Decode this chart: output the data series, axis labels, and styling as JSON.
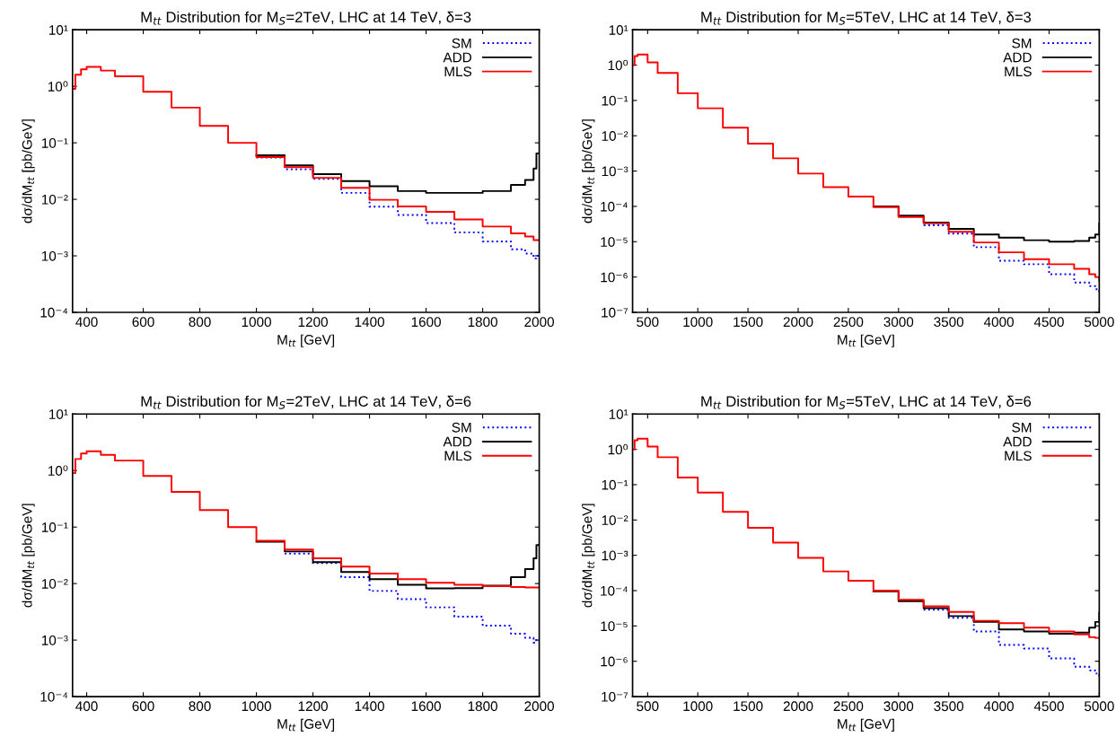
{
  "chart_data": [
    {
      "type": "step",
      "title": "M$_{tt}$ Distribution for M$_{S}$=2TeV, LHC at 14 TeV, δ=3",
      "xlabel": "M$_{tt}$ [GeV]",
      "ylabel": "dσ/dM$_{tt}$ [pb/GeV]",
      "log": "y",
      "legend": "top right",
      "grid": false,
      "xlim": [
        350,
        2000
      ],
      "xticks": [
        400,
        600,
        800,
        1000,
        1200,
        1400,
        1600,
        1800,
        2000
      ],
      "ylim": [
        0.0001,
        10
      ],
      "yticks": [
        {
          "value": 0.0001,
          "label": "10⁻⁴"
        },
        {
          "value": 0.001,
          "label": "10⁻³"
        },
        {
          "value": 0.01,
          "label": "10⁻²"
        },
        {
          "value": 0.1,
          "label": "10⁻¹"
        },
        {
          "value": 1,
          "label": "10⁰"
        },
        {
          "value": 10,
          "label": "10¹"
        }
      ],
      "x": [
        350,
        360,
        380,
        400,
        450,
        500,
        600,
        700,
        800,
        900,
        1000,
        1100,
        1200,
        1300,
        1400,
        1500,
        1600,
        1700,
        1800,
        1900,
        1950,
        1980,
        1990,
        2000
      ],
      "series": [
        {
          "name": "SM",
          "color": "#0000ff",
          "line_style": "dotted",
          "values": [
            null,
            null,
            null,
            null,
            null,
            null,
            null,
            null,
            null,
            null,
            0.055,
            0.034,
            0.023,
            0.013,
            0.0074,
            0.0053,
            0.0038,
            0.0026,
            0.0018,
            0.0013,
            0.0011,
            0.0009,
            0.001,
            0.001
          ]
        },
        {
          "name": "ADD",
          "color": "#000000",
          "line_style": "solid",
          "values": [
            null,
            null,
            null,
            null,
            null,
            null,
            null,
            null,
            null,
            null,
            0.06,
            0.04,
            0.028,
            0.021,
            0.017,
            0.014,
            0.013,
            0.013,
            0.014,
            0.018,
            0.022,
            0.035,
            0.065,
            0.065
          ]
        },
        {
          "name": "MLS",
          "color": "#ff0000",
          "line_style": "solid",
          "values": [
            0.9,
            1.6,
            2.0,
            2.2,
            1.9,
            1.5,
            0.8,
            0.42,
            0.2,
            0.1,
            0.056,
            0.037,
            0.024,
            0.016,
            0.0098,
            0.0075,
            0.006,
            0.0044,
            0.0033,
            0.0025,
            0.0022,
            0.0019,
            0.0019,
            0.0019
          ]
        }
      ]
    },
    {
      "type": "step",
      "title": "M$_{tt}$ Distribution for M$_{S}$=5TeV, LHC at 14 TeV, δ=3",
      "xlabel": "M$_{tt}$ [GeV]",
      "ylabel": "dσ/dM$_{tt}$ [pb/GeV]",
      "log": "y",
      "legend": "top right",
      "grid": false,
      "xlim": [
        350,
        5000
      ],
      "xticks": [
        500,
        1000,
        1500,
        2000,
        2500,
        3000,
        3500,
        4000,
        4500,
        5000
      ],
      "ylim": [
        1e-07,
        10
      ],
      "yticks": [
        {
          "value": 1e-07,
          "label": "10⁻⁷"
        },
        {
          "value": 1e-06,
          "label": "10⁻⁶"
        },
        {
          "value": 1e-05,
          "label": "10⁻⁵"
        },
        {
          "value": 0.0001,
          "label": "10⁻⁴"
        },
        {
          "value": 0.001,
          "label": "10⁻³"
        },
        {
          "value": 0.01,
          "label": "10⁻²"
        },
        {
          "value": 0.1,
          "label": "10⁻¹"
        },
        {
          "value": 1,
          "label": "10⁰"
        },
        {
          "value": 10,
          "label": "10¹"
        }
      ],
      "x": [
        350,
        370,
        400,
        500,
        600,
        800,
        1000,
        1250,
        1500,
        1750,
        2000,
        2250,
        2500,
        2750,
        3000,
        3250,
        3500,
        3750,
        4000,
        4250,
        4500,
        4750,
        4900,
        4960,
        5000
      ],
      "series": [
        {
          "name": "SM",
          "color": "#0000ff",
          "line_style": "dotted",
          "values": [
            null,
            null,
            null,
            null,
            null,
            null,
            null,
            null,
            null,
            null,
            null,
            null,
            null,
            null,
            null,
            2.9e-05,
            1.7e-05,
            7e-06,
            2.9e-06,
            2.3e-06,
            1.2e-06,
            7e-07,
            5.5e-07,
            4.5e-07,
            3.5e-07
          ]
        },
        {
          "name": "ADD",
          "color": "#000000",
          "line_style": "solid",
          "values": [
            null,
            null,
            null,
            null,
            null,
            null,
            null,
            null,
            null,
            null,
            null,
            null,
            null,
            0.0001,
            5.5e-05,
            3.5e-05,
            2.3e-05,
            1.6e-05,
            1.3e-05,
            1.1e-05,
            1e-05,
            1.05e-05,
            1.3e-05,
            1.6e-05,
            3.3e-05
          ]
        },
        {
          "name": "MLS",
          "color": "#ff0000",
          "line_style": "solid",
          "values": [
            1.0,
            1.8,
            2.0,
            1.2,
            0.6,
            0.16,
            0.06,
            0.017,
            0.006,
            0.0023,
            0.00085,
            0.00035,
            0.00019,
            9.5e-05,
            5e-05,
            3.3e-05,
            1.9e-05,
            9.5e-06,
            5e-06,
            3.2e-06,
            2.3e-06,
            1.7e-06,
            1.2e-06,
            1e-06,
            8e-07
          ]
        }
      ]
    },
    {
      "type": "step",
      "title": "M$_{tt}$ Distribution for M$_{S}$=2TeV, LHC at 14 TeV, δ=6",
      "xlabel": "M$_{tt}$ [GeV]",
      "ylabel": "dσ/dM$_{tt}$ [pb/GeV]",
      "log": "y",
      "legend": "top right",
      "grid": false,
      "xlim": [
        350,
        2000
      ],
      "xticks": [
        400,
        600,
        800,
        1000,
        1200,
        1400,
        1600,
        1800,
        2000
      ],
      "ylim": [
        0.0001,
        10
      ],
      "yticks": [
        {
          "value": 0.0001,
          "label": "10⁻⁴"
        },
        {
          "value": 0.001,
          "label": "10⁻³"
        },
        {
          "value": 0.01,
          "label": "10⁻²"
        },
        {
          "value": 0.1,
          "label": "10⁻¹"
        },
        {
          "value": 1,
          "label": "10⁰"
        },
        {
          "value": 10,
          "label": "10¹"
        }
      ],
      "x": [
        350,
        360,
        380,
        400,
        450,
        500,
        600,
        700,
        800,
        900,
        1000,
        1100,
        1200,
        1300,
        1400,
        1500,
        1600,
        1700,
        1800,
        1900,
        1950,
        1980,
        1990,
        2000
      ],
      "series": [
        {
          "name": "SM",
          "color": "#0000ff",
          "line_style": "dotted",
          "values": [
            null,
            null,
            null,
            null,
            null,
            null,
            null,
            null,
            null,
            null,
            null,
            0.034,
            0.023,
            0.013,
            0.0074,
            0.0053,
            0.0038,
            0.0026,
            0.0018,
            0.0013,
            0.0011,
            0.0009,
            0.001,
            0.001
          ]
        },
        {
          "name": "ADD",
          "color": "#000000",
          "line_style": "solid",
          "values": [
            null,
            null,
            null,
            null,
            null,
            null,
            null,
            null,
            null,
            null,
            0.055,
            0.037,
            0.024,
            0.016,
            0.012,
            0.0095,
            0.0082,
            0.0083,
            0.0092,
            0.013,
            0.018,
            0.028,
            0.048,
            0.048
          ]
        },
        {
          "name": "MLS",
          "color": "#ff0000",
          "line_style": "solid",
          "values": [
            0.9,
            1.6,
            2.0,
            2.2,
            1.9,
            1.5,
            0.8,
            0.42,
            0.2,
            0.1,
            0.057,
            0.04,
            0.028,
            0.02,
            0.015,
            0.012,
            0.0103,
            0.0095,
            0.009,
            0.0087,
            0.0085,
            0.0085,
            0.0085,
            0.0085
          ]
        }
      ]
    },
    {
      "type": "step",
      "title": "M$_{tt}$ Distribution for M$_{S}$=5TeV, LHC at 14 TeV, δ=6",
      "xlabel": "M$_{tt}$ [GeV]",
      "ylabel": "dσ/dM$_{tt}$ [pb/GeV]",
      "log": "y",
      "legend": "top right",
      "grid": false,
      "xlim": [
        350,
        5000
      ],
      "xticks": [
        500,
        1000,
        1500,
        2000,
        2500,
        3000,
        3500,
        4000,
        4500,
        5000
      ],
      "ylim": [
        1e-07,
        10
      ],
      "yticks": [
        {
          "value": 1e-07,
          "label": "10⁻⁷"
        },
        {
          "value": 1e-06,
          "label": "10⁻⁶"
        },
        {
          "value": 1e-05,
          "label": "10⁻⁵"
        },
        {
          "value": 0.0001,
          "label": "10⁻⁴"
        },
        {
          "value": 0.001,
          "label": "10⁻³"
        },
        {
          "value": 0.01,
          "label": "10⁻²"
        },
        {
          "value": 0.1,
          "label": "10⁻¹"
        },
        {
          "value": 1,
          "label": "10⁰"
        },
        {
          "value": 10,
          "label": "10¹"
        }
      ],
      "x": [
        350,
        370,
        400,
        500,
        600,
        800,
        1000,
        1250,
        1500,
        1750,
        2000,
        2250,
        2500,
        2750,
        3000,
        3250,
        3500,
        3750,
        4000,
        4250,
        4500,
        4750,
        4900,
        4960,
        5000
      ],
      "series": [
        {
          "name": "SM",
          "color": "#0000ff",
          "line_style": "dotted",
          "values": [
            null,
            null,
            null,
            null,
            null,
            null,
            null,
            null,
            null,
            null,
            null,
            null,
            null,
            null,
            null,
            2.9e-05,
            1.7e-05,
            7e-06,
            2.9e-06,
            2.3e-06,
            1.2e-06,
            7e-07,
            5.5e-07,
            4.5e-07,
            3.5e-07
          ]
        },
        {
          "name": "ADD",
          "color": "#000000",
          "line_style": "solid",
          "values": [
            null,
            null,
            null,
            null,
            null,
            null,
            null,
            null,
            null,
            null,
            null,
            null,
            null,
            9.5e-05,
            5e-05,
            3.2e-05,
            1.9e-05,
            1.3e-05,
            8e-06,
            7e-06,
            6e-06,
            6.5e-06,
            9e-06,
            1.3e-05,
            2.4e-05
          ]
        },
        {
          "name": "MLS",
          "color": "#ff0000",
          "line_style": "solid",
          "values": [
            1.0,
            1.8,
            2.0,
            1.2,
            0.6,
            0.16,
            0.06,
            0.017,
            0.006,
            0.0023,
            0.00085,
            0.00035,
            0.00019,
            0.0001,
            5.5e-05,
            3.6e-05,
            2.5e-05,
            1.4e-05,
            1.2e-05,
            9e-06,
            7e-06,
            5.8e-06,
            4.8e-06,
            4.6e-06,
            4.5e-06
          ]
        }
      ]
    }
  ]
}
